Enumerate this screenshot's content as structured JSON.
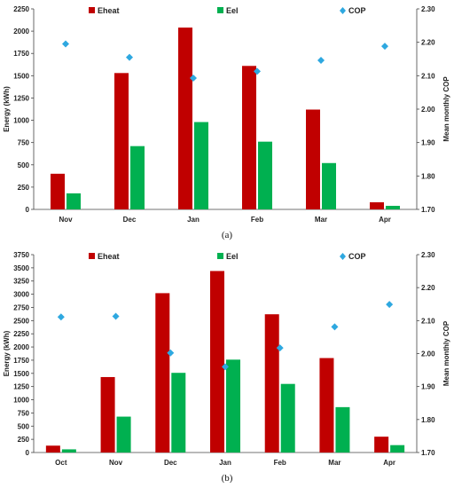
{
  "colors": {
    "eheat": "#c00000",
    "eel": "#00b050",
    "cop": "#2ea8e0"
  },
  "chart_data": [
    {
      "type": "bar",
      "panel_label": "(a)",
      "categories": [
        "Nov",
        "Dec",
        "Jan",
        "Feb",
        "Mar",
        "Apr"
      ],
      "series": [
        {
          "name": "Eheat",
          "values": [
            400,
            1530,
            2040,
            1610,
            1120,
            80
          ]
        },
        {
          "name": "Eel",
          "values": [
            180,
            710,
            980,
            760,
            520,
            40
          ]
        },
        {
          "name": "COP",
          "axis": "right",
          "values": [
            2.195,
            2.155,
            2.093,
            2.113,
            2.146,
            2.188
          ]
        }
      ],
      "ylabel": "Energy (kWh)",
      "ylabel_right": "Mean monthly COP",
      "ylim": [
        0,
        2250
      ],
      "ylim_right": [
        1.7,
        2.3
      ],
      "yticks": [
        0,
        250,
        500,
        750,
        1000,
        1250,
        1500,
        1750,
        2000,
        2250
      ],
      "yticks_right": [
        "1.70",
        "1.80",
        "1.90",
        "2.00",
        "2.10",
        "2.20",
        "2.30"
      ],
      "legend": "top",
      "grid": false
    },
    {
      "type": "bar",
      "panel_label": "(b)",
      "categories": [
        "Oct",
        "Nov",
        "Dec",
        "Jan",
        "Feb",
        "Mar",
        "Apr"
      ],
      "series": [
        {
          "name": "Eheat",
          "values": [
            130,
            1430,
            3020,
            3440,
            2620,
            1790,
            300
          ]
        },
        {
          "name": "Eel",
          "values": [
            60,
            680,
            1510,
            1760,
            1300,
            860,
            140
          ]
        },
        {
          "name": "COP",
          "axis": "right",
          "values": [
            2.111,
            2.113,
            2.002,
            1.96,
            2.017,
            2.081,
            2.149
          ]
        }
      ],
      "ylabel": "Energy (kWh)",
      "ylabel_right": "Mean monthly COP",
      "ylim": [
        0,
        3750
      ],
      "ylim_right": [
        1.7,
        2.3
      ],
      "yticks": [
        0,
        250,
        500,
        750,
        1000,
        1250,
        1500,
        1750,
        2000,
        2250,
        2500,
        2750,
        3000,
        3250,
        3500,
        3750
      ],
      "yticks_right": [
        "1.70",
        "1.80",
        "1.90",
        "2.00",
        "2.10",
        "2.20",
        "2.30"
      ],
      "legend": "top",
      "grid": false
    }
  ]
}
